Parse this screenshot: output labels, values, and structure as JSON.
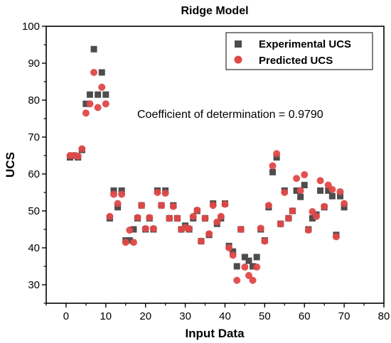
{
  "chart_data": {
    "type": "scatter",
    "title": "Ridge Model",
    "xlabel": "Input Data",
    "ylabel": "UCS",
    "xlim": [
      -5,
      80
    ],
    "ylim": [
      25,
      100
    ],
    "xticks": [
      0,
      10,
      20,
      30,
      40,
      50,
      60,
      70,
      80
    ],
    "yticks": [
      30,
      40,
      50,
      60,
      70,
      80,
      90,
      100
    ],
    "xtick_labels": [
      "0",
      "10",
      "20",
      "30",
      "40",
      "50",
      "60",
      "70",
      "80"
    ],
    "ytick_labels": [
      "30",
      "40",
      "50",
      "60",
      "70",
      "80",
      "90",
      "100"
    ],
    "grid": false,
    "legend_position": "top-right",
    "annotation": "Coefficient of determination = 0.9790",
    "series": [
      {
        "name": "Experimental UCS",
        "marker": "square",
        "color": "#4d4d4d",
        "x": [
          1,
          2,
          3,
          4,
          5,
          6,
          7,
          8,
          9,
          10,
          11,
          12,
          13,
          14,
          15,
          16,
          17,
          18,
          19,
          20,
          21,
          22,
          23,
          24,
          25,
          26,
          27,
          28,
          29,
          30,
          31,
          32,
          33,
          34,
          35,
          36,
          37,
          38,
          39,
          40,
          41,
          42,
          43,
          44,
          45,
          46,
          47,
          48,
          49,
          50,
          51,
          52,
          53,
          54,
          55,
          56,
          57,
          58,
          59,
          60,
          61,
          62,
          63,
          64,
          65,
          66,
          67,
          68,
          69,
          70
        ],
        "y": [
          64.5,
          65,
          64.5,
          66.5,
          79,
          81.5,
          93.8,
          81.5,
          87.5,
          81.5,
          48,
          55.5,
          51,
          55.5,
          42,
          42,
          45,
          48,
          51.5,
          45,
          48,
          45,
          55.5,
          51.5,
          55.5,
          48,
          51.5,
          48,
          45,
          46,
          45,
          48,
          50,
          41.8,
          48,
          43.5,
          52,
          46.5,
          48,
          52,
          40.5,
          39,
          35,
          45,
          37.5,
          36.5,
          35,
          37.5,
          45,
          42,
          51,
          60.5,
          64.5,
          46.5,
          55.5,
          48,
          50,
          55.5,
          53.8,
          57,
          45,
          48,
          49,
          55.5,
          51,
          55.5,
          54,
          43.5,
          54,
          51
        ]
      },
      {
        "name": "Predicted UCS",
        "marker": "circle",
        "color": "#e04848",
        "x": [
          1,
          2,
          3,
          4,
          5,
          6,
          7,
          8,
          9,
          10,
          11,
          12,
          13,
          14,
          15,
          16,
          17,
          18,
          19,
          20,
          21,
          22,
          23,
          24,
          25,
          26,
          27,
          28,
          29,
          30,
          31,
          32,
          33,
          34,
          35,
          36,
          37,
          38,
          39,
          40,
          41,
          42,
          43,
          44,
          45,
          46,
          47,
          48,
          49,
          50,
          51,
          52,
          53,
          54,
          55,
          56,
          57,
          58,
          59,
          60,
          61,
          62,
          63,
          64,
          65,
          66,
          67,
          68,
          69,
          70
        ],
        "y": [
          65,
          65,
          64.8,
          66.8,
          76.5,
          79,
          87.5,
          78,
          83.5,
          79,
          48.5,
          54.5,
          52,
          54.5,
          41.5,
          44.8,
          41.5,
          48.2,
          51.5,
          45.2,
          48.2,
          45.2,
          55,
          51.5,
          54.8,
          48,
          51.2,
          48,
          45,
          45.5,
          45.2,
          48.5,
          50.2,
          41.8,
          48,
          43.8,
          51.5,
          47,
          48.5,
          51.8,
          40,
          38,
          31.2,
          45,
          34.8,
          32.5,
          31.2,
          34.8,
          45.3,
          41.8,
          51.5,
          62.2,
          65.5,
          46.5,
          55,
          48,
          50,
          58.8,
          55.5,
          59.8,
          44.8,
          49.8,
          48.5,
          58.2,
          51.2,
          57,
          55.8,
          43,
          55.2,
          52
        ]
      }
    ]
  }
}
